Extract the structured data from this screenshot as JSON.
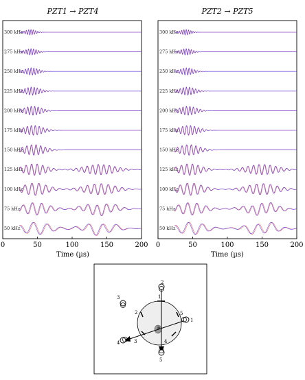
{
  "chart_data": [
    {
      "type": "line",
      "title": "PZT1 → PZT4",
      "xlabel": "Time (µs)",
      "xlim": [
        0,
        200
      ],
      "x_ticks": [
        "0",
        "50",
        "100",
        "150",
        "200"
      ],
      "series": [
        {
          "color": "#ff3333",
          "values": []
        },
        {
          "color": "#3333ff",
          "values": []
        }
      ],
      "traces": [
        {
          "label": "300 kHz"
        },
        {
          "label": "275 kHz"
        },
        {
          "label": "250 kHz"
        },
        {
          "label": "225 kHz"
        },
        {
          "label": "200 kHz"
        },
        {
          "label": "175 kHz"
        },
        {
          "label": "150 kHz"
        },
        {
          "label": "125 kHz"
        },
        {
          "label": "100 kHz"
        },
        {
          "label": "75 kHz"
        },
        {
          "label": "50 kHz"
        }
      ]
    },
    {
      "type": "line",
      "title": "PZT2 → PZT5",
      "xlabel": "Time (µs)",
      "xlim": [
        0,
        200
      ],
      "x_ticks": [
        "0",
        "50",
        "100",
        "150",
        "200"
      ],
      "series": [
        {
          "color": "#ff3333",
          "values": []
        },
        {
          "color": "#3333ff",
          "values": []
        }
      ],
      "traces": [
        {
          "label": "300 kHz"
        },
        {
          "label": "275 kHz"
        },
        {
          "label": "250 kHz"
        },
        {
          "label": "225 kHz"
        },
        {
          "label": "200 kHz"
        },
        {
          "label": "175 kHz"
        },
        {
          "label": "150 kHz"
        },
        {
          "label": "125 kHz"
        },
        {
          "label": "100 kHz"
        },
        {
          "label": "75 kHz"
        },
        {
          "label": "50 kHz"
        }
      ]
    }
  ],
  "diagram": {
    "sensors": [
      "1",
      "2",
      "3",
      "4",
      "5"
    ],
    "plate_labels": [
      "1",
      "2",
      "3",
      "4",
      "5"
    ]
  }
}
